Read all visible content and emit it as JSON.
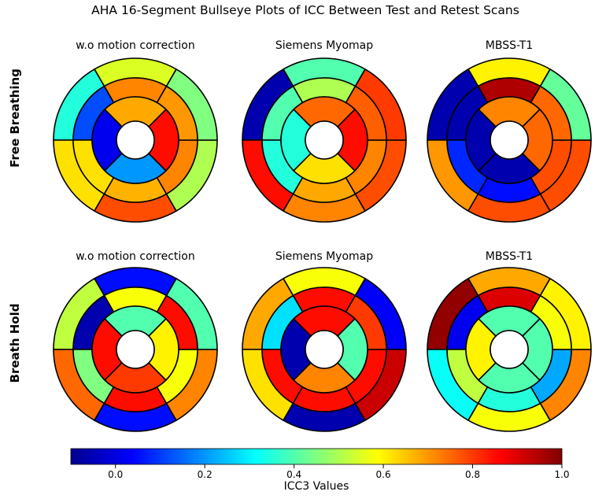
{
  "figure": {
    "title": "AHA 16-Segment Bullseye Plots of ICC Between Test and Retest Scans",
    "row_labels": [
      "Free Breathing",
      "Breath Hold"
    ],
    "colorbar": {
      "label": "ICC3 Values",
      "colormap": "jet",
      "vmin": -0.1,
      "vmax": 1.0,
      "ticks": [
        0.0,
        0.2,
        0.4,
        0.6,
        0.8,
        1.0
      ],
      "tick_labels": [
        "0.0",
        "0.2",
        "0.4",
        "0.6",
        "0.8",
        "1.0"
      ]
    }
  },
  "chart_data": [
    {
      "type": "heatmap",
      "layout": "aha-16-segment-bullseye",
      "row": "Free Breathing",
      "title": "w.o motion correction",
      "segments": [
        0.55,
        0.35,
        0.62,
        0.78,
        0.5,
        0.45,
        0.72,
        0.12,
        0.62,
        0.67,
        0.72,
        0.7,
        0.68,
        0.02,
        0.2,
        0.85
      ]
    },
    {
      "type": "heatmap",
      "layout": "aha-16-segment-bullseye",
      "row": "Free Breathing",
      "title": "Siemens Myomap",
      "segments": [
        0.4,
        -0.05,
        0.85,
        0.72,
        0.78,
        0.8,
        0.5,
        0.4,
        0.35,
        0.68,
        0.72,
        0.76,
        0.75,
        0.35,
        0.62,
        0.85
      ]
    },
    {
      "type": "heatmap",
      "layout": "aha-16-segment-bullseye",
      "row": "Free Breathing",
      "title": "MBSS-T1",
      "segments": [
        0.6,
        -0.05,
        0.7,
        0.78,
        0.78,
        0.42,
        0.95,
        -0.05,
        0.08,
        0.05,
        0.78,
        0.75,
        0.72,
        -0.05,
        -0.05,
        0.75
      ]
    },
    {
      "type": "heatmap",
      "layout": "aha-16-segment-bullseye",
      "row": "Breath Hold",
      "title": "w.o motion correction",
      "segments": [
        0.05,
        0.52,
        0.75,
        0.05,
        0.72,
        0.4,
        0.58,
        -0.05,
        0.45,
        0.85,
        0.58,
        0.85,
        0.4,
        0.85,
        0.8,
        0.6
      ]
    },
    {
      "type": "heatmap",
      "layout": "aha-16-segment-bullseye",
      "row": "Breath Hold",
      "title": "Siemens Myomap",
      "segments": [
        0.58,
        0.68,
        0.62,
        -0.05,
        0.92,
        0.03,
        0.85,
        0.28,
        0.85,
        0.85,
        0.85,
        0.8,
        0.85,
        -0.05,
        0.72,
        0.4
      ]
    },
    {
      "type": "heatmap",
      "layout": "aha-16-segment-bullseye",
      "row": "Breath Hold",
      "title": "MBSS-T1",
      "segments": [
        0.68,
        0.98,
        0.32,
        0.58,
        0.72,
        0.6,
        0.9,
        0.02,
        0.52,
        0.35,
        0.22,
        0.58,
        0.4,
        0.6,
        0.4,
        0.4
      ]
    }
  ]
}
